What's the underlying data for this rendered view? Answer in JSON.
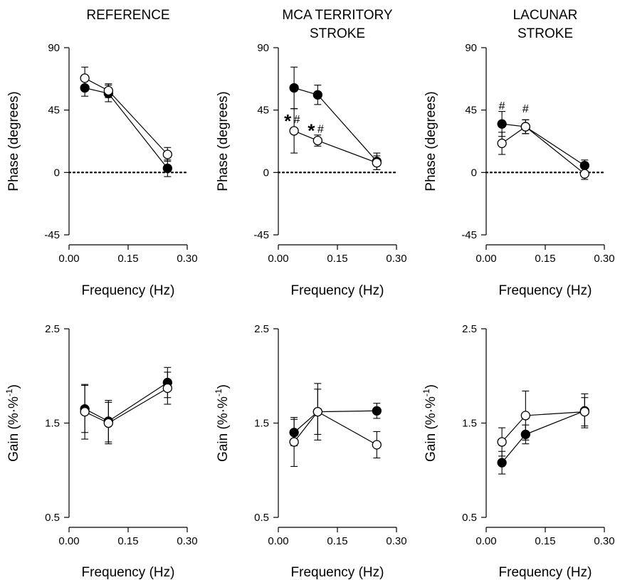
{
  "chart_data": [
    {
      "type": "line",
      "title": "REFERENCE",
      "subtitle": "",
      "xlabel": "Frequency (Hz)",
      "ylabel": "Phase (degrees)",
      "xlim": [
        0.0,
        0.3
      ],
      "ylim": [
        -45,
        90
      ],
      "xticks": [
        "0.00",
        "0.15",
        "0.30"
      ],
      "yticks": [
        "-45",
        "0",
        "45",
        "90"
      ],
      "zero_line": true,
      "series": [
        {
          "marker": "filled",
          "x": [
            0.04,
            0.1,
            0.25
          ],
          "y": [
            61,
            57,
            3
          ],
          "err": [
            6,
            6,
            6
          ]
        },
        {
          "marker": "open",
          "x": [
            0.04,
            0.1,
            0.25
          ],
          "y": [
            68,
            59,
            13
          ],
          "err": [
            8,
            5,
            5
          ]
        }
      ],
      "annotations": []
    },
    {
      "type": "line",
      "title": "MCA TERRITORY",
      "subtitle": "STROKE",
      "xlabel": "Frequency (Hz)",
      "ylabel": "Phase (degrees)",
      "xlim": [
        0.0,
        0.3
      ],
      "ylim": [
        -45,
        90
      ],
      "xticks": [
        "0.00",
        "0.15",
        "0.30"
      ],
      "yticks": [
        "-45",
        "0",
        "45",
        "90"
      ],
      "zero_line": true,
      "series": [
        {
          "marker": "filled",
          "x": [
            0.04,
            0.1,
            0.25
          ],
          "y": [
            61,
            56,
            8
          ],
          "err": [
            15,
            7,
            6
          ]
        },
        {
          "marker": "open",
          "x": [
            0.04,
            0.1,
            0.25
          ],
          "y": [
            30,
            23,
            7
          ],
          "err": [
            16,
            4,
            5
          ]
        }
      ],
      "annotations": [
        {
          "x": 0.04,
          "y": 30,
          "star": "*",
          "text": "#"
        },
        {
          "x": 0.1,
          "y": 23,
          "star": "*",
          "text": "#"
        }
      ]
    },
    {
      "type": "line",
      "title": "LACUNAR",
      "subtitle": "STROKE",
      "xlabel": "Frequency (Hz)",
      "ylabel": "Phase (degrees)",
      "xlim": [
        0.0,
        0.3
      ],
      "ylim": [
        -45,
        90
      ],
      "xticks": [
        "0.00",
        "0.15",
        "0.30"
      ],
      "yticks": [
        "-45",
        "0",
        "45",
        "90"
      ],
      "zero_line": true,
      "series": [
        {
          "marker": "filled",
          "x": [
            0.04,
            0.1,
            0.25
          ],
          "y": [
            35,
            33,
            5
          ],
          "err": [
            9,
            5,
            4
          ]
        },
        {
          "marker": "open",
          "x": [
            0.04,
            0.1,
            0.25
          ],
          "y": [
            21,
            33,
            -1
          ],
          "err": [
            8,
            5,
            4
          ]
        }
      ],
      "annotations": [
        {
          "x": 0.04,
          "y": 35,
          "star": "",
          "text": "#"
        },
        {
          "x": 0.1,
          "y": 33,
          "star": "",
          "text": "#"
        }
      ]
    },
    {
      "type": "line",
      "title": "",
      "subtitle": "",
      "xlabel": "Frequency (Hz)",
      "ylabel": "Gain (%·%",
      "ylabel_sup": "-1",
      "ylabel_end": ")",
      "xlim": [
        0.0,
        0.3
      ],
      "ylim": [
        0.5,
        2.5
      ],
      "xticks": [
        "0.00",
        "0.15",
        "0.30"
      ],
      "yticks": [
        "0.5",
        "1.5",
        "2.5"
      ],
      "zero_line": false,
      "series": [
        {
          "marker": "filled",
          "x": [
            0.04,
            0.1,
            0.25
          ],
          "y": [
            1.65,
            1.52,
            1.93
          ],
          "err": [
            0.25,
            0.22,
            0.16
          ]
        },
        {
          "marker": "open",
          "x": [
            0.04,
            0.1,
            0.25
          ],
          "y": [
            1.62,
            1.5,
            1.87
          ],
          "err": [
            0.29,
            0.22,
            0.17
          ]
        }
      ],
      "annotations": []
    },
    {
      "type": "line",
      "title": "",
      "subtitle": "",
      "xlabel": "Frequency (Hz)",
      "ylabel": "Gain (%·%",
      "ylabel_sup": "-1",
      "ylabel_end": ")",
      "xlim": [
        0.0,
        0.3
      ],
      "ylim": [
        0.5,
        2.5
      ],
      "xticks": [
        "0.00",
        "0.15",
        "0.30"
      ],
      "yticks": [
        "0.5",
        "1.5",
        "2.5"
      ],
      "zero_line": false,
      "series": [
        {
          "marker": "filled",
          "x": [
            0.04,
            0.1,
            0.25
          ],
          "y": [
            1.4,
            1.62,
            1.63
          ],
          "err": [
            0.14,
            0.24,
            0.08
          ]
        },
        {
          "marker": "open",
          "x": [
            0.04,
            0.1,
            0.25
          ],
          "y": [
            1.3,
            1.62,
            1.27
          ],
          "err": [
            0.26,
            0.3,
            0.14
          ]
        }
      ],
      "annotations": []
    },
    {
      "type": "line",
      "title": "",
      "subtitle": "",
      "xlabel": "Frequency (Hz)",
      "ylabel": "Gain (%·%",
      "ylabel_sup": "-1",
      "ylabel_end": ")",
      "xlim": [
        0.0,
        0.3
      ],
      "ylim": [
        0.5,
        2.5
      ],
      "xticks": [
        "0.00",
        "0.15",
        "0.30"
      ],
      "yticks": [
        "0.5",
        "1.5",
        "2.5"
      ],
      "zero_line": false,
      "series": [
        {
          "marker": "filled",
          "x": [
            0.04,
            0.1,
            0.25
          ],
          "y": [
            1.08,
            1.38,
            1.63
          ],
          "err": [
            0.12,
            0.1,
            0.18
          ]
        },
        {
          "marker": "open",
          "x": [
            0.04,
            0.1,
            0.25
          ],
          "y": [
            1.3,
            1.58,
            1.62
          ],
          "err": [
            0.15,
            0.26,
            0.15
          ]
        }
      ],
      "annotations": []
    }
  ]
}
